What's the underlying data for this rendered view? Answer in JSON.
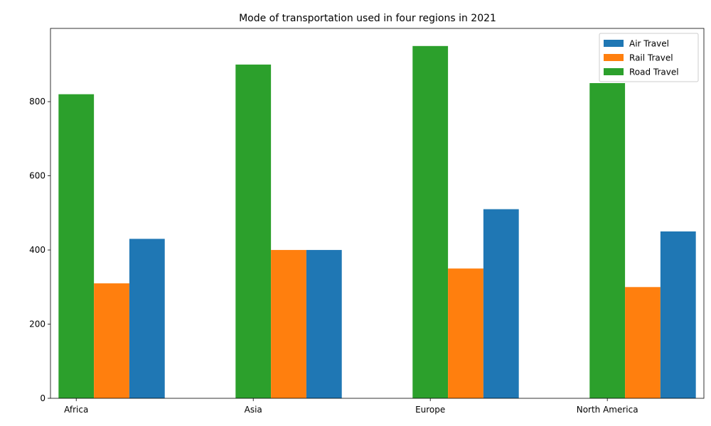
{
  "chart_data": {
    "type": "bar",
    "title": "Mode of transportation used in four regions in 2021",
    "xlabel": "",
    "ylabel": "",
    "categories": [
      "Africa",
      "Asia",
      "Europe",
      "North America"
    ],
    "draw_order": [
      "Road Travel",
      "Rail Travel",
      "Air Travel"
    ],
    "series": [
      {
        "name": "Air Travel",
        "color": "#1f77b4",
        "values": [
          430,
          400,
          510,
          450
        ]
      },
      {
        "name": "Rail Travel",
        "color": "#ff7f0e",
        "values": [
          310,
          400,
          350,
          300
        ]
      },
      {
        "name": "Road Travel",
        "color": "#2ca02c",
        "values": [
          820,
          900,
          950,
          850
        ]
      }
    ],
    "ylim": [
      0,
      997.5
    ],
    "yticks": [
      0,
      200,
      400,
      600,
      800
    ],
    "legend_position": "top-right",
    "grid": false
  }
}
